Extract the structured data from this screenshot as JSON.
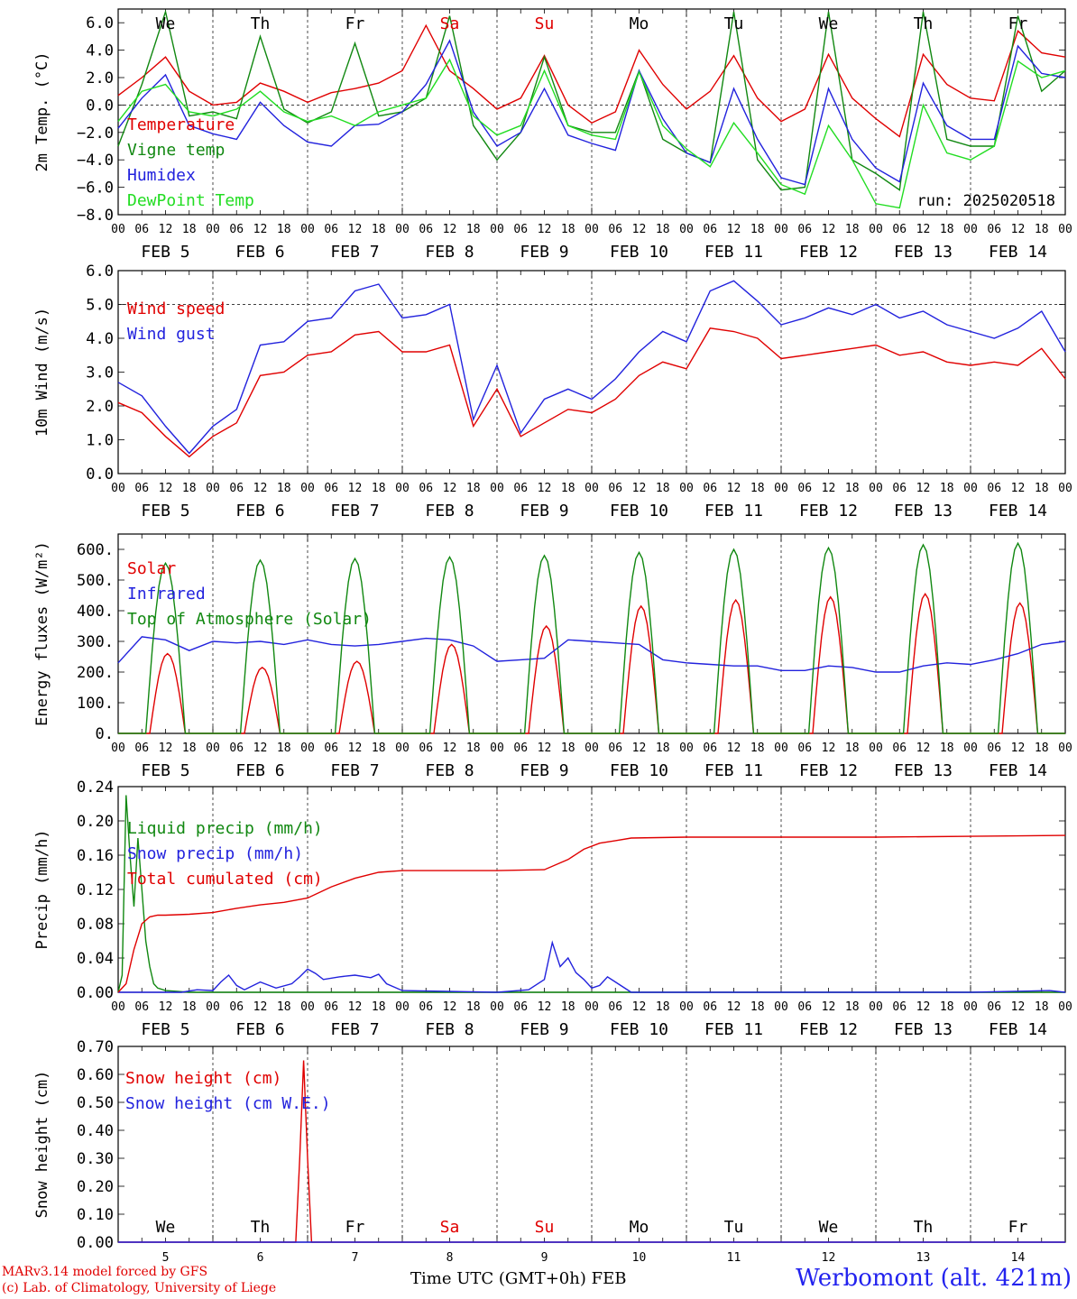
{
  "footer": {
    "model": "MARv3.14 model forced by GFS",
    "credit": "(c) Lab. of Climatology, University of Liege",
    "station": "Werbomont (alt. 421m)",
    "xaxis_title": "Time UTC (GMT+0h) FEB"
  },
  "days": {
    "abbrev": [
      "We",
      "Th",
      "Fr",
      "Sa",
      "Su",
      "Mo",
      "Tu",
      "We",
      "Th",
      "Fr"
    ],
    "abbrev_colors": [
      "#000000",
      "#000000",
      "#000000",
      "#e00000",
      "#e00000",
      "#000000",
      "#000000",
      "#000000",
      "#000000",
      "#000000"
    ],
    "dates": [
      "FEB  5",
      "FEB  6",
      "FEB  7",
      "FEB  8",
      "FEB  9",
      "FEB 10",
      "FEB 11",
      "FEB 12",
      "FEB 13",
      "FEB 14"
    ],
    "numbers": [
      "5",
      "6",
      "7",
      "8",
      "9",
      "10",
      "11",
      "12",
      "13",
      "14"
    ],
    "hours": [
      "00",
      "06",
      "12",
      "18"
    ],
    "end_hour": "00"
  },
  "chart_data": [
    {
      "type": "line",
      "ylabel": "2m Temp. (°C)",
      "ylim": [
        -8,
        7
      ],
      "yticks": [
        -8,
        -6,
        -4,
        -2,
        0,
        2,
        4,
        6
      ],
      "ytick_labels": [
        "−8.0",
        "−6.0",
        "−4.0",
        "−2.0",
        "0.0",
        "2.0",
        "4.0",
        "6.0"
      ],
      "reference_line": 0,
      "annotation": "run: 2025020518",
      "x_unit": "hours since FEB 5 00 UTC",
      "series": [
        {
          "name": "Temperature",
          "color": "#e00000",
          "x": [
            0,
            6,
            12,
            18,
            24,
            30,
            36,
            42,
            48,
            54,
            60,
            66,
            72,
            78,
            84,
            90,
            96,
            102,
            108,
            114,
            120,
            126,
            132,
            138,
            144,
            150,
            156,
            162,
            168,
            174,
            180,
            186,
            192,
            198,
            204,
            210,
            216,
            222,
            228,
            234,
            240
          ],
          "y": [
            0.7,
            2.0,
            3.5,
            1.0,
            0.0,
            0.2,
            1.6,
            1.0,
            0.2,
            0.9,
            1.2,
            1.6,
            2.5,
            5.8,
            2.5,
            1.2,
            -0.3,
            0.5,
            3.6,
            0.0,
            -1.3,
            -0.5,
            4.0,
            1.5,
            -0.3,
            1.0,
            3.6,
            0.5,
            -1.2,
            -0.3,
            3.7,
            0.5,
            -1.0,
            -2.3,
            3.7,
            1.5,
            0.5,
            0.3,
            5.4,
            3.8,
            3.5
          ]
        },
        {
          "name": "Vigne temp",
          "color": "#118811",
          "x": [
            0,
            6,
            12,
            18,
            24,
            30,
            36,
            42,
            48,
            54,
            60,
            66,
            72,
            78,
            84,
            90,
            96,
            102,
            108,
            114,
            120,
            126,
            132,
            138,
            144,
            150,
            156,
            162,
            168,
            174,
            180,
            186,
            192,
            198,
            204,
            210,
            216,
            222,
            228,
            234,
            240
          ],
          "y": [
            -3.0,
            1.5,
            6.8,
            -0.8,
            -0.5,
            -1.0,
            5.0,
            -0.3,
            -1.3,
            -0.5,
            4.5,
            -0.8,
            -0.5,
            0.5,
            6.5,
            -1.5,
            -4.0,
            -2.0,
            3.5,
            -1.5,
            -2.0,
            -2.0,
            2.5,
            -2.5,
            -3.5,
            -4.2,
            6.8,
            -4.0,
            -6.2,
            -6.0,
            6.8,
            -4.0,
            -5.0,
            -6.2,
            6.8,
            -2.5,
            -3.0,
            -3.0,
            6.5,
            1.0,
            2.5
          ]
        },
        {
          "name": "Humidex",
          "color": "#2222dd",
          "x": [
            0,
            6,
            12,
            18,
            24,
            30,
            36,
            42,
            48,
            54,
            60,
            66,
            72,
            78,
            84,
            90,
            96,
            102,
            108,
            114,
            120,
            126,
            132,
            138,
            144,
            150,
            156,
            162,
            168,
            174,
            180,
            186,
            192,
            198,
            204,
            210,
            216,
            222,
            228,
            234,
            240
          ],
          "y": [
            -1.7,
            0.5,
            2.2,
            -1.5,
            -2.1,
            -2.5,
            0.2,
            -1.5,
            -2.7,
            -3.0,
            -1.5,
            -1.4,
            -0.5,
            1.5,
            4.7,
            -0.5,
            -3.0,
            -2.0,
            1.2,
            -2.2,
            -2.8,
            -3.3,
            2.5,
            -1.0,
            -3.5,
            -4.2,
            1.2,
            -2.5,
            -5.3,
            -5.8,
            1.2,
            -2.5,
            -4.6,
            -5.6,
            1.6,
            -1.5,
            -2.5,
            -2.5,
            4.3,
            2.3,
            2.0
          ]
        },
        {
          "name": "DewPoint Temp",
          "color": "#22dd22",
          "x": [
            0,
            6,
            12,
            18,
            24,
            30,
            36,
            42,
            48,
            54,
            60,
            66,
            72,
            78,
            84,
            90,
            96,
            102,
            108,
            114,
            120,
            126,
            132,
            138,
            144,
            150,
            156,
            162,
            168,
            174,
            180,
            186,
            192,
            198,
            204,
            210,
            216,
            222,
            228,
            234,
            240
          ],
          "y": [
            -1.2,
            1.0,
            1.5,
            -0.5,
            -0.8,
            -0.3,
            1.0,
            -0.5,
            -1.2,
            -0.8,
            -1.5,
            -0.5,
            0.0,
            0.5,
            3.3,
            -0.8,
            -2.2,
            -1.5,
            2.5,
            -1.5,
            -2.2,
            -2.5,
            2.4,
            -1.5,
            -3.2,
            -4.5,
            -1.3,
            -3.5,
            -5.8,
            -6.5,
            -1.5,
            -4.0,
            -7.2,
            -7.5,
            0.0,
            -3.5,
            -4.0,
            -3.0,
            3.2,
            2.0,
            2.5
          ]
        }
      ]
    },
    {
      "type": "line",
      "ylabel": "10m Wind (m/s)",
      "ylim": [
        0,
        6
      ],
      "yticks": [
        0,
        1,
        2,
        3,
        4,
        5,
        6
      ],
      "ytick_labels": [
        "0.0",
        "1.0",
        "2.0",
        "3.0",
        "4.0",
        "5.0",
        "6.0"
      ],
      "reference_line": 5,
      "x_unit": "hours since FEB 5 00 UTC",
      "series": [
        {
          "name": "Wind speed",
          "color": "#e00000",
          "x": [
            0,
            6,
            12,
            18,
            24,
            30,
            36,
            42,
            48,
            54,
            60,
            66,
            72,
            78,
            84,
            90,
            96,
            102,
            108,
            114,
            120,
            126,
            132,
            138,
            144,
            150,
            156,
            162,
            168,
            174,
            180,
            186,
            192,
            198,
            204,
            210,
            216,
            222,
            228,
            234,
            240
          ],
          "y": [
            2.1,
            1.8,
            1.1,
            0.5,
            1.1,
            1.5,
            2.9,
            3.0,
            3.5,
            3.6,
            4.1,
            4.2,
            3.6,
            3.6,
            3.8,
            1.4,
            2.5,
            1.1,
            1.5,
            1.9,
            1.8,
            2.2,
            2.9,
            3.3,
            3.1,
            4.3,
            4.2,
            4.0,
            3.4,
            3.5,
            3.6,
            3.7,
            3.8,
            3.5,
            3.6,
            3.3,
            3.2,
            3.3,
            3.2,
            3.7,
            2.8
          ]
        },
        {
          "name": "Wind gust",
          "color": "#2222dd",
          "x": [
            0,
            6,
            12,
            18,
            24,
            30,
            36,
            42,
            48,
            54,
            60,
            66,
            72,
            78,
            84,
            90,
            96,
            102,
            108,
            114,
            120,
            126,
            132,
            138,
            144,
            150,
            156,
            162,
            168,
            174,
            180,
            186,
            192,
            198,
            204,
            210,
            216,
            222,
            228,
            234,
            240
          ],
          "y": [
            2.7,
            2.3,
            1.4,
            0.6,
            1.4,
            1.9,
            3.8,
            3.9,
            4.5,
            4.6,
            5.4,
            5.6,
            4.6,
            4.7,
            5.0,
            1.6,
            3.2,
            1.2,
            2.2,
            2.5,
            2.2,
            2.8,
            3.6,
            4.2,
            3.9,
            5.4,
            5.7,
            5.1,
            4.4,
            4.6,
            4.9,
            4.7,
            5.0,
            4.6,
            4.8,
            4.4,
            4.2,
            4.0,
            4.3,
            4.8,
            3.6
          ]
        }
      ]
    },
    {
      "type": "line",
      "ylabel": "Energy fluxes (W/m²)",
      "ylim": [
        0,
        650
      ],
      "yticks": [
        0,
        100,
        200,
        300,
        400,
        500,
        600
      ],
      "ytick_labels": [
        "0.",
        "100.",
        "200.",
        "300.",
        "400.",
        "500.",
        "600."
      ],
      "x_unit": "hours since FEB 5 00 UTC",
      "series": [
        {
          "name": "Solar",
          "color": "#e00000",
          "shape": "daily_bell",
          "peak_hour": 12.5,
          "peak_halfwidth_h": 4.5,
          "peaks": [
            260,
            215,
            235,
            290,
            350,
            415,
            435,
            445,
            455,
            425
          ]
        },
        {
          "name": "Infrared",
          "color": "#2222dd",
          "x": [
            0,
            6,
            12,
            18,
            24,
            30,
            36,
            42,
            48,
            54,
            60,
            66,
            72,
            78,
            84,
            90,
            96,
            102,
            108,
            114,
            120,
            126,
            132,
            138,
            144,
            150,
            156,
            162,
            168,
            174,
            180,
            186,
            192,
            198,
            204,
            210,
            216,
            222,
            228,
            234,
            240
          ],
          "y": [
            230,
            315,
            305,
            270,
            300,
            295,
            300,
            290,
            305,
            290,
            285,
            290,
            300,
            310,
            305,
            285,
            235,
            240,
            245,
            305,
            300,
            295,
            290,
            240,
            230,
            225,
            220,
            220,
            205,
            205,
            220,
            215,
            200,
            200,
            220,
            230,
            225,
            240,
            260,
            290,
            300
          ]
        },
        {
          "name": "Top of Atmosphere (Solar)",
          "color": "#118811",
          "shape": "daily_bell",
          "peak_hour": 12,
          "peak_halfwidth_h": 5,
          "peaks": [
            555,
            565,
            570,
            575,
            580,
            590,
            600,
            605,
            615,
            620
          ]
        }
      ]
    },
    {
      "type": "line",
      "ylabel": "Precip (mm/h)",
      "ylim": [
        0,
        0.24
      ],
      "yticks": [
        0,
        0.04,
        0.08,
        0.12,
        0.16,
        0.2,
        0.24
      ],
      "ytick_labels": [
        "0.00",
        "0.04",
        "0.08",
        "0.12",
        "0.16",
        "0.20",
        "0.24"
      ],
      "x_unit": "hours since FEB 5 00 UTC",
      "series": [
        {
          "name": "Liquid precip (mm/h)",
          "color": "#118811",
          "x": [
            0,
            1,
            2,
            3,
            4,
            5,
            6,
            7,
            8,
            9,
            10,
            12,
            15,
            18,
            24,
            27,
            30,
            36,
            48,
            60,
            66,
            72,
            96,
            120,
            144,
            168,
            192,
            216,
            240
          ],
          "y": [
            0,
            0.02,
            0.23,
            0.16,
            0.1,
            0.18,
            0.12,
            0.06,
            0.03,
            0.01,
            0.005,
            0.002,
            0.001,
            0,
            0,
            0,
            0,
            0,
            0,
            0,
            0,
            0,
            0,
            0,
            0,
            0,
            0,
            0,
            0
          ]
        },
        {
          "name": "Snow precip (mm/h)",
          "color": "#2222dd",
          "x": [
            0,
            16,
            20,
            24,
            26,
            28,
            30,
            32,
            36,
            40,
            44,
            46,
            48,
            50,
            52,
            56,
            60,
            64,
            66,
            68,
            72,
            96,
            104,
            108,
            110,
            112,
            114,
            116,
            118,
            120,
            122,
            124,
            126,
            130,
            144,
            168,
            192,
            216,
            236,
            240
          ],
          "y": [
            0,
            0,
            0.003,
            0.002,
            0.012,
            0.02,
            0.008,
            0.003,
            0.012,
            0.005,
            0.01,
            0.018,
            0.027,
            0.022,
            0.015,
            0.018,
            0.02,
            0.017,
            0.021,
            0.01,
            0.002,
            0,
            0.003,
            0.015,
            0.058,
            0.03,
            0.04,
            0.023,
            0.015,
            0.005,
            0.008,
            0.018,
            0.012,
            0,
            0,
            0,
            0,
            0,
            0.002,
            0
          ]
        },
        {
          "name": "Total cumulated (cm)",
          "color": "#e00000",
          "x": [
            0,
            2,
            4,
            6,
            8,
            10,
            12,
            18,
            24,
            30,
            36,
            42,
            48,
            54,
            60,
            66,
            72,
            84,
            96,
            108,
            114,
            118,
            122,
            126,
            130,
            144,
            168,
            192,
            216,
            240
          ],
          "y": [
            0,
            0.01,
            0.05,
            0.08,
            0.088,
            0.09,
            0.09,
            0.091,
            0.093,
            0.098,
            0.102,
            0.105,
            0.11,
            0.123,
            0.133,
            0.14,
            0.142,
            0.142,
            0.142,
            0.143,
            0.155,
            0.167,
            0.174,
            0.177,
            0.18,
            0.181,
            0.181,
            0.181,
            0.182,
            0.183
          ]
        }
      ]
    },
    {
      "type": "line",
      "ylabel": "Snow height (cm)",
      "ylim": [
        0,
        0.7
      ],
      "yticks": [
        0,
        0.1,
        0.2,
        0.3,
        0.4,
        0.5,
        0.6,
        0.7
      ],
      "ytick_labels": [
        "0.00",
        "0.10",
        "0.20",
        "0.30",
        "0.40",
        "0.50",
        "0.60",
        "0.70"
      ],
      "x_unit": "hours since FEB 5 00 UTC",
      "series": [
        {
          "name": "Snow height (cm)",
          "color": "#e00000",
          "x": [
            0,
            45,
            46,
            47,
            48,
            49,
            240
          ],
          "y": [
            0,
            0,
            0.3,
            0.65,
            0.3,
            0,
            0
          ]
        },
        {
          "name": "Snow height (cm W.E.)",
          "color": "#2222dd",
          "x": [
            0,
            240
          ],
          "y": [
            0,
            0
          ]
        }
      ]
    }
  ]
}
